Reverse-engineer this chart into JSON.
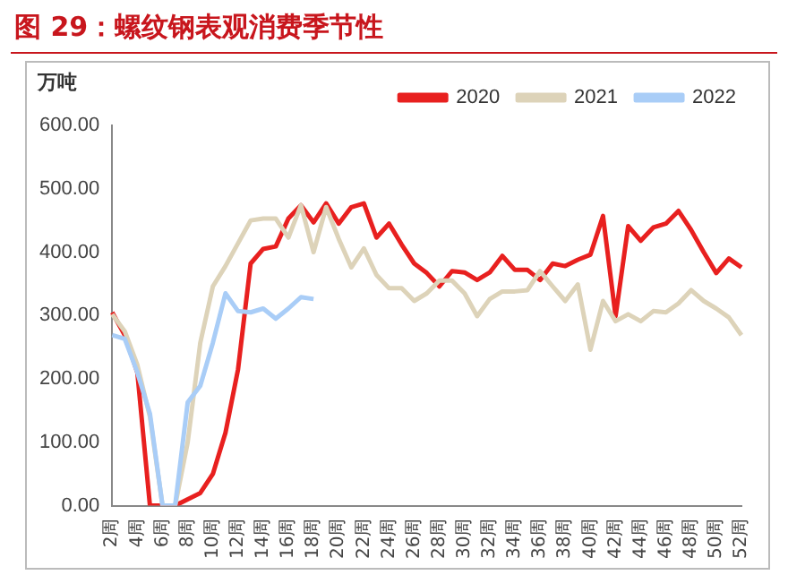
{
  "chart_data": {
    "type": "line",
    "title": "图 29：螺纹钢表观消费季节性",
    "ylabel": "万吨",
    "categories": [
      "2周",
      null,
      "4周",
      null,
      "6周",
      null,
      "8周",
      null,
      "10周",
      null,
      "12周",
      null,
      "14周",
      null,
      "16周",
      null,
      "18周",
      null,
      "20周",
      null,
      "22周",
      null,
      "24周",
      null,
      "26周",
      null,
      "28周",
      null,
      "30周",
      null,
      "32周",
      null,
      "34周",
      null,
      "36周",
      null,
      "38周",
      null,
      "40周",
      null,
      "42周",
      null,
      "44周",
      null,
      "46周",
      null,
      "48周",
      null,
      "50周",
      null,
      "52周"
    ],
    "series": [
      {
        "name": "2020",
        "color": "#e8201f",
        "values": [
          305,
          269,
          210,
          0,
          0,
          0,
          10,
          20,
          50,
          115,
          215,
          382,
          405,
          409,
          453,
          474,
          447,
          477,
          445,
          471,
          477,
          423,
          445,
          412,
          382,
          367,
          346,
          370,
          368,
          356,
          368,
          394,
          372,
          372,
          356,
          382,
          378,
          388,
          396,
          457,
          299,
          441,
          418,
          439,
          445,
          465,
          435,
          400,
          367,
          390,
          376
        ]
      },
      {
        "name": "2021",
        "color": "#ddd3b9",
        "values": [
          302,
          275,
          222,
          140,
          0,
          0,
          100,
          257,
          346,
          378,
          414,
          450,
          453,
          453,
          423,
          474,
          400,
          471,
          421,
          376,
          406,
          364,
          343,
          343,
          323,
          335,
          355,
          355,
          335,
          299,
          326,
          338,
          338,
          340,
          370,
          346,
          323,
          349,
          246,
          323,
          291,
          302,
          291,
          307,
          305,
          319,
          340,
          323,
          311,
          297,
          269
        ]
      },
      {
        "name": "2022",
        "color": "#a9cdf7",
        "values": [
          269,
          263,
          210,
          145,
          0,
          0,
          163,
          189,
          257,
          335,
          307,
          305,
          311,
          295,
          311,
          329,
          326,
          null,
          null,
          null,
          null,
          null,
          null,
          null,
          null,
          null,
          null,
          null,
          null,
          null,
          null,
          null,
          null,
          null,
          null,
          null,
          null,
          null,
          null,
          null,
          null,
          null,
          null,
          null,
          null,
          null,
          null,
          null,
          null,
          null,
          null
        ]
      }
    ],
    "ylim": [
      0,
      600
    ],
    "yticks": [
      {
        "value": 0,
        "label": "0.00"
      },
      {
        "value": 100,
        "label": "100.00"
      },
      {
        "value": 200,
        "label": "200.00"
      },
      {
        "value": 300,
        "label": "300.00"
      },
      {
        "value": 400,
        "label": "400.00"
      },
      {
        "value": 500,
        "label": "500.00"
      },
      {
        "value": 600,
        "label": "600.00"
      }
    ],
    "grid": false,
    "legend": "top right",
    "marker": "none",
    "line_style": "solid"
  }
}
